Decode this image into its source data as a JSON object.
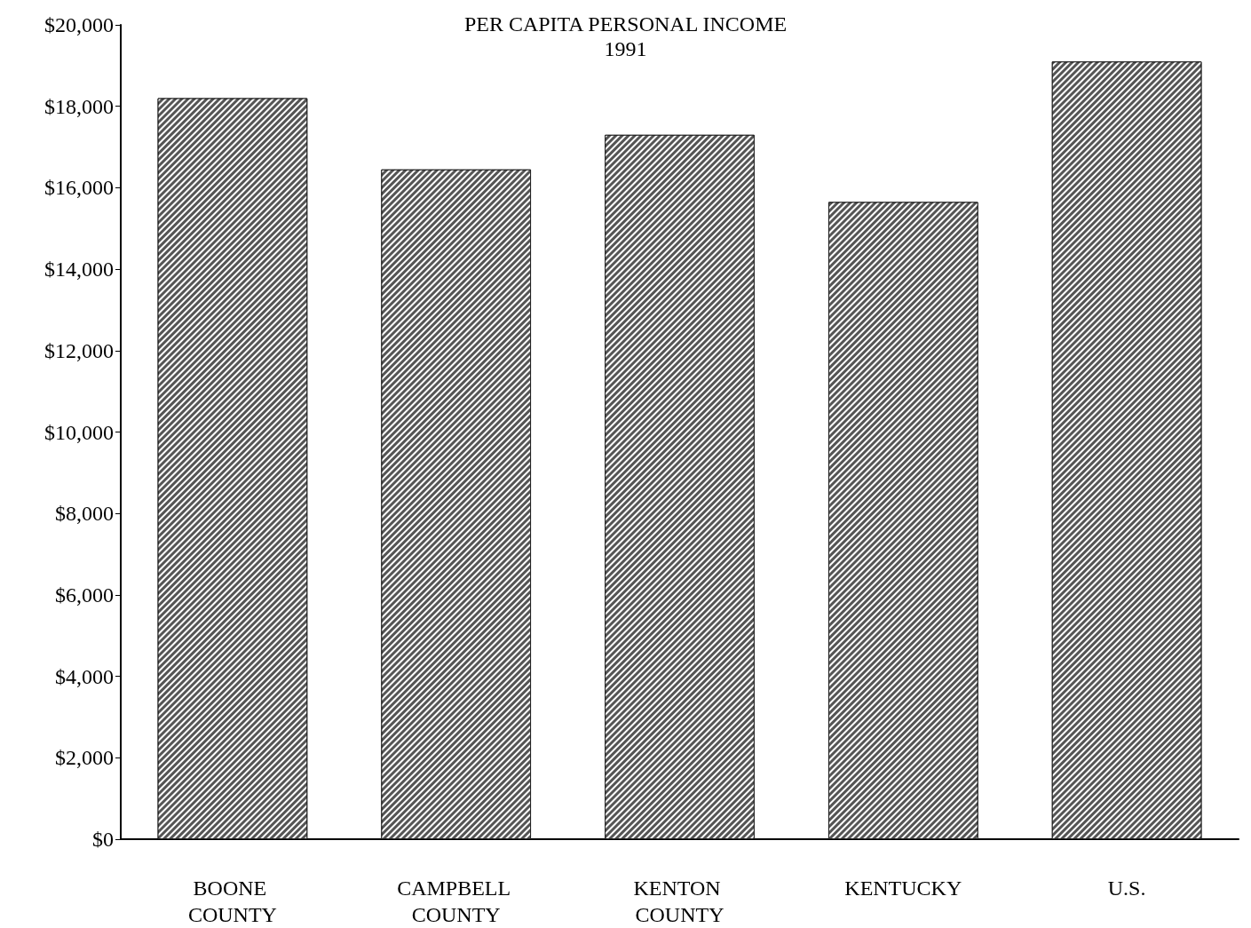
{
  "chart_data": {
    "type": "bar",
    "title": "PER CAPITA PERSONAL INCOME\n1991",
    "categories": [
      "BOONE COUNTY",
      "CAMPBELL COUNTY",
      "KENTON COUNTY",
      "KENTUCKY",
      "U.S."
    ],
    "values": [
      18200,
      16450,
      17300,
      15650,
      19100
    ],
    "color": "#555555",
    "ylim": [
      0,
      20000
    ],
    "yticks": [
      {
        "value": 0,
        "label": "$0"
      },
      {
        "value": 2000,
        "label": "$2,000"
      },
      {
        "value": 4000,
        "label": "$4,000"
      },
      {
        "value": 6000,
        "label": "$6,000"
      },
      {
        "value": 8000,
        "label": "$8,000"
      },
      {
        "value": 10000,
        "label": "$10,000"
      },
      {
        "value": 12000,
        "label": "$12,000"
      },
      {
        "value": 14000,
        "label": "$14,000"
      },
      {
        "value": 16000,
        "label": "$16,000"
      },
      {
        "value": 18000,
        "label": "$18,000"
      },
      {
        "value": 20000,
        "label": "$20,000"
      }
    ],
    "grid": false
  }
}
